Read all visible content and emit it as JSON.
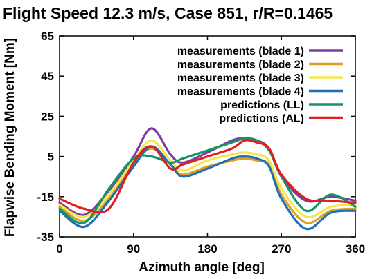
{
  "chart_data": {
    "type": "line",
    "title": "Flight Speed 12.3 m/s, Case 851, r/R=0.1465",
    "xlabel": "Azimuth angle [deg]",
    "ylabel": "Flapwise Bending Moment [Nm]",
    "xlim": [
      0,
      360
    ],
    "ylim": [
      -35,
      65
    ],
    "xticks": [
      0,
      90,
      180,
      270,
      360
    ],
    "yticks": [
      -35,
      -15,
      5,
      25,
      45,
      65
    ],
    "legend_position": "top-right",
    "grid": false,
    "x": [
      0,
      30,
      60,
      90,
      112,
      135,
      150,
      180,
      210,
      225,
      240,
      255,
      270,
      300,
      330,
      360
    ],
    "series": [
      {
        "name": "measurements (blade 1)",
        "color": "#7b3fa0",
        "values": [
          -18,
          -24,
          -12,
          5,
          19,
          6,
          2,
          7,
          13,
          14,
          13,
          9,
          -5,
          -17,
          -15,
          -17
        ]
      },
      {
        "name": "measurements (blade 2)",
        "color": "#e0a020",
        "values": [
          -20,
          -27,
          -16,
          1,
          9,
          1,
          -4,
          0,
          3,
          4,
          3,
          1,
          -14,
          -28,
          -22,
          -21
        ]
      },
      {
        "name": "measurements (blade 3)",
        "color": "#f2e84a",
        "values": [
          -19,
          -25,
          -14,
          3,
          13,
          3,
          -2,
          3,
          6,
          7,
          6,
          3,
          -11,
          -25,
          -20,
          -19
        ]
      },
      {
        "name": "measurements (blade 4)",
        "color": "#1f6fb8",
        "values": [
          -22,
          -30,
          -17,
          0,
          10,
          1,
          -5,
          -1,
          4,
          5,
          4,
          0,
          -16,
          -31,
          -23,
          -22
        ]
      },
      {
        "name": "predictions (LL)",
        "color": "#17936a",
        "values": [
          -21,
          -28,
          -11,
          4,
          5,
          2,
          4,
          8,
          12,
          14,
          13,
          8,
          -5,
          -22,
          -14,
          -20
        ]
      },
      {
        "name": "predictions (AL)",
        "color": "#e02020",
        "values": [
          -16,
          -21,
          -21,
          2,
          10,
          -1,
          1,
          5,
          9,
          13,
          12,
          9,
          -4,
          -16,
          -17,
          -18
        ]
      }
    ]
  }
}
